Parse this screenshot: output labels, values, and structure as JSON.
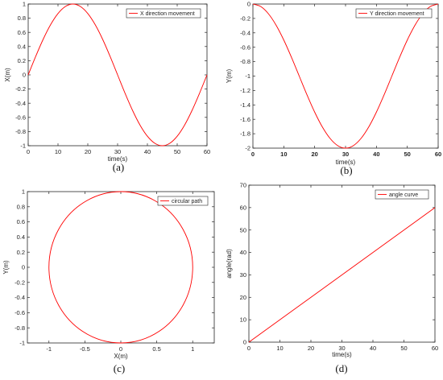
{
  "line_color": "#ff0000",
  "chart_data": [
    {
      "id": "a",
      "type": "line",
      "caption": "(a)",
      "xlabel": "time(s)",
      "ylabel": "X(m)",
      "xlim": [
        0,
        60
      ],
      "ylim": [
        -1,
        1
      ],
      "xticks": [
        0,
        10,
        20,
        30,
        40,
        50,
        60
      ],
      "yticks": [
        -1,
        -0.8,
        -0.6,
        -0.4,
        -0.2,
        0,
        0.2,
        0.4,
        0.6,
        0.8,
        1
      ],
      "xtick_labels": [
        "0",
        "10",
        "20",
        "30",
        "40",
        "50",
        "60"
      ],
      "ytick_labels": [
        "-1",
        "-0.8",
        "-0.6",
        "-0.4",
        "-0.2",
        "0",
        "0.2",
        "0.4",
        "0.6",
        "0.8",
        "1"
      ],
      "legend": "X direction movement",
      "legend_position": "top-right",
      "grid": false,
      "series": [
        {
          "x": [
            0,
            2.5,
            5,
            7.5,
            10,
            12.5,
            15,
            17.5,
            20,
            22.5,
            25,
            27.5,
            30,
            32.5,
            35,
            37.5,
            40,
            42.5,
            45,
            47.5,
            50,
            52.5,
            55,
            57.5,
            60
          ],
          "y": [
            0,
            0.259,
            0.5,
            0.707,
            0.866,
            0.966,
            1,
            0.966,
            0.866,
            0.707,
            0.5,
            0.259,
            0,
            -0.259,
            -0.5,
            -0.707,
            -0.866,
            -0.966,
            -1,
            -0.966,
            -0.866,
            -0.707,
            -0.5,
            -0.259,
            0
          ]
        }
      ]
    },
    {
      "id": "b",
      "type": "line",
      "caption": "(b)",
      "xlabel": "time(s)",
      "ylabel": "Y(m)",
      "xlim": [
        0,
        60
      ],
      "ylim": [
        -2,
        0
      ],
      "xticks": [
        0,
        10,
        20,
        30,
        40,
        50,
        60
      ],
      "yticks": [
        -2,
        -1.8,
        -1.6,
        -1.4,
        -1.2,
        -1,
        -0.8,
        -0.6,
        -0.4,
        -0.2,
        0
      ],
      "xtick_labels": [
        "0",
        "10",
        "20",
        "30",
        "40",
        "50",
        "60"
      ],
      "ytick_labels": [
        "-2",
        "-1.8",
        "-1.6",
        "-1.4",
        "-1.2",
        "-1",
        "-0.8",
        "-0.6",
        "-0.4",
        "-0.2",
        "0"
      ],
      "legend": "Y direction movement",
      "legend_position": "top-right",
      "grid": false,
      "series": [
        {
          "x": [
            0,
            2.5,
            5,
            7.5,
            10,
            12.5,
            15,
            17.5,
            20,
            22.5,
            25,
            27.5,
            30,
            32.5,
            35,
            37.5,
            40,
            42.5,
            45,
            47.5,
            50,
            52.5,
            55,
            57.5,
            60
          ],
          "y": [
            0,
            -0.034,
            -0.134,
            -0.293,
            -0.5,
            -0.741,
            -1,
            -1.259,
            -1.5,
            -1.707,
            -1.866,
            -1.966,
            -2,
            -1.966,
            -1.866,
            -1.707,
            -1.5,
            -1.259,
            -1,
            -0.741,
            -0.5,
            -0.293,
            -0.134,
            -0.034,
            0
          ]
        }
      ]
    },
    {
      "id": "c",
      "type": "line",
      "caption": "(c)",
      "xlabel": "X(m)",
      "ylabel": "Y(m)",
      "xlim": [
        -1.3,
        1.3
      ],
      "ylim": [
        -1,
        1
      ],
      "xticks": [
        -1,
        -0.5,
        0,
        0.5,
        1
      ],
      "yticks": [
        -1,
        -0.8,
        -0.6,
        -0.4,
        -0.2,
        0,
        0.2,
        0.4,
        0.6,
        0.8,
        1
      ],
      "xtick_labels": [
        "-1",
        "-0.5",
        "0",
        "0.5",
        "1"
      ],
      "ytick_labels": [
        "-1",
        "-0.8",
        "-0.6",
        "-0.4",
        "-0.2",
        "0",
        "0.2",
        "0.4",
        "0.6",
        "0.8",
        "1"
      ],
      "legend": "circular path",
      "legend_position": "top-right",
      "grid": false,
      "series": [
        {
          "x": [
            0,
            0.259,
            0.5,
            0.707,
            0.866,
            0.966,
            1,
            0.966,
            0.866,
            0.707,
            0.5,
            0.259,
            0,
            -0.259,
            -0.5,
            -0.707,
            -0.866,
            -0.966,
            -1,
            -0.966,
            -0.866,
            -0.707,
            -0.5,
            -0.259,
            0
          ],
          "y": [
            1,
            0.966,
            0.866,
            0.707,
            0.5,
            0.259,
            0,
            -0.259,
            -0.5,
            -0.707,
            -0.866,
            -0.966,
            -1,
            -0.966,
            -0.866,
            -0.707,
            -0.5,
            -0.259,
            0,
            0.259,
            0.5,
            0.707,
            0.866,
            0.966,
            1
          ]
        }
      ]
    },
    {
      "id": "d",
      "type": "line",
      "caption": "(d)",
      "xlabel": "time(s)",
      "ylabel": "angle(rad)",
      "xlim": [
        0,
        60
      ],
      "ylim": [
        0,
        70
      ],
      "xticks": [
        0,
        10,
        20,
        30,
        40,
        50,
        60
      ],
      "yticks": [
        0,
        10,
        20,
        30,
        40,
        50,
        60,
        70
      ],
      "xtick_labels": [
        "0",
        "10",
        "20",
        "30",
        "40",
        "50",
        "60"
      ],
      "ytick_labels": [
        "0",
        "10",
        "20",
        "30",
        "40",
        "50",
        "60",
        "70"
      ],
      "legend": "angle curve",
      "legend_position": "top-right",
      "grid": false,
      "series": [
        {
          "x": [
            0,
            60
          ],
          "y": [
            0,
            60
          ]
        }
      ]
    }
  ]
}
